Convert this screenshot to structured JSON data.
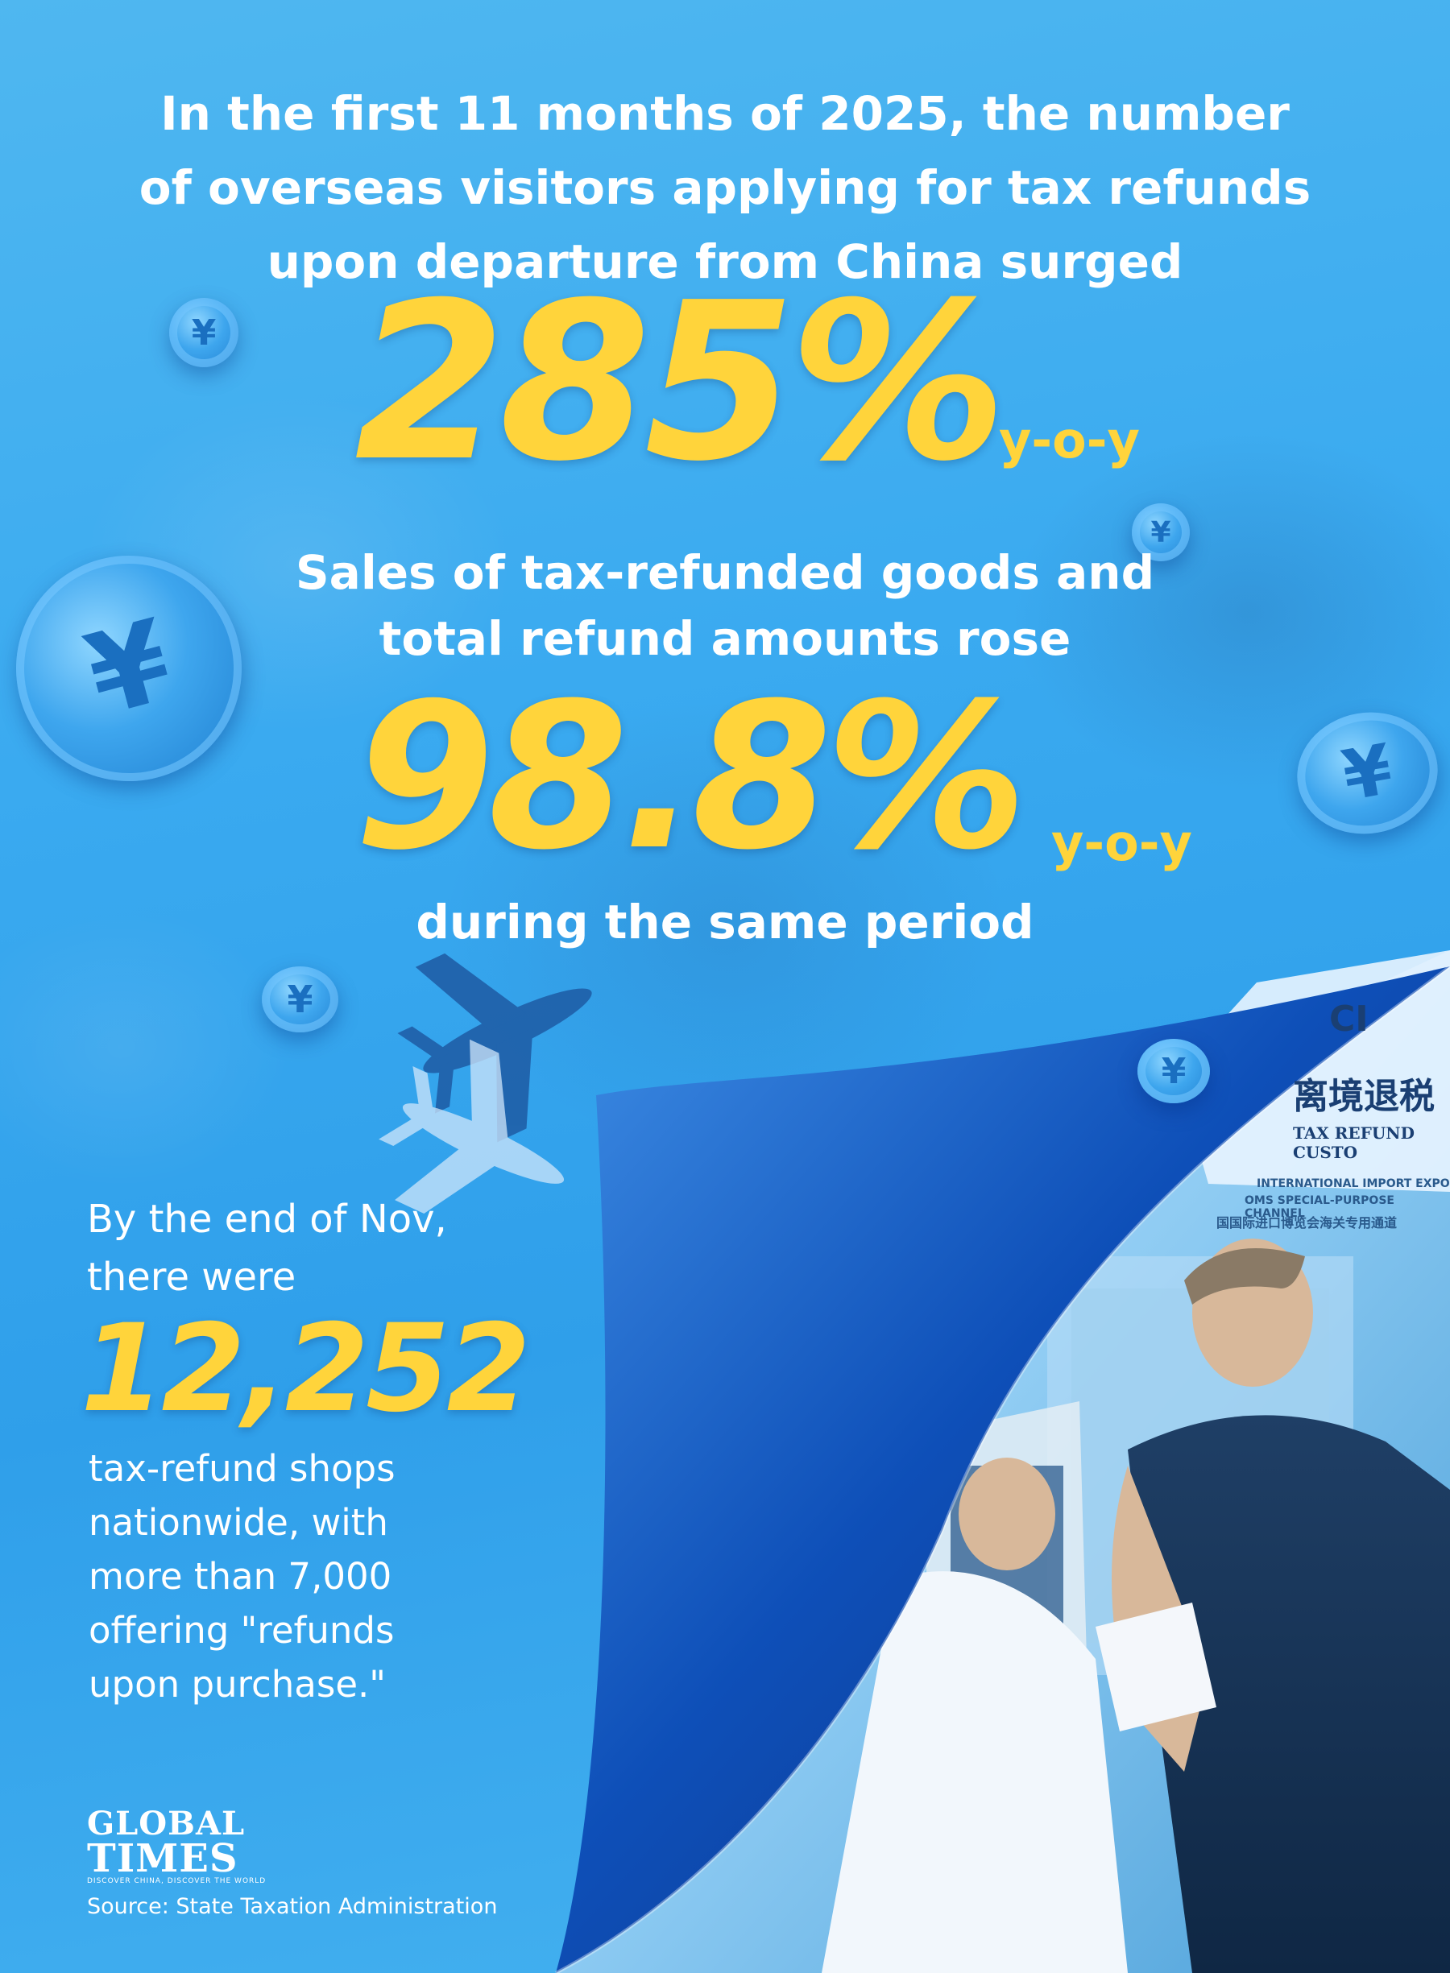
{
  "headline": {
    "line1": "In the first 11 months of 2025, the number",
    "line2": "of overseas visitors applying for tax refunds",
    "line3": "upon departure from China surged"
  },
  "stat1": {
    "value": "285%",
    "suffix": "y-o-y"
  },
  "sales": {
    "line1": "Sales of tax-refunded goods and",
    "line2": "total refund amounts rose"
  },
  "stat2": {
    "value": "98.8%",
    "suffix": "y-o-y"
  },
  "period": "during the same period",
  "shops": {
    "line1": "By the end of Nov,",
    "line2": "there were",
    "value": "12,252",
    "desc": [
      "tax-refund shops",
      "nationwide, with",
      "more than 7,000",
      "offering \"refunds",
      "upon purchase.\""
    ]
  },
  "sign": {
    "chinese": "离境退税",
    "english": "TAX REFUND CUSTO",
    "expo1": "INTERNATIONAL IMPORT EXPO",
    "expo2": "OMS SPECIAL-PURPOSE CHANNEL",
    "expo3": "国国际进口博览会海关专用通道",
    "corner": "CI"
  },
  "coin_symbol": "¥",
  "logo": {
    "line1": "GLOBAL",
    "line2": "TIMES",
    "tagline": "DISCOVER CHINA, DISCOVER THE WORLD"
  },
  "source": "Source: State Taxation Administration",
  "colors": {
    "background": "#3aaaf0",
    "accent": "#ffd43b",
    "fold": "#0b3f9a",
    "text": "#ffffff"
  }
}
